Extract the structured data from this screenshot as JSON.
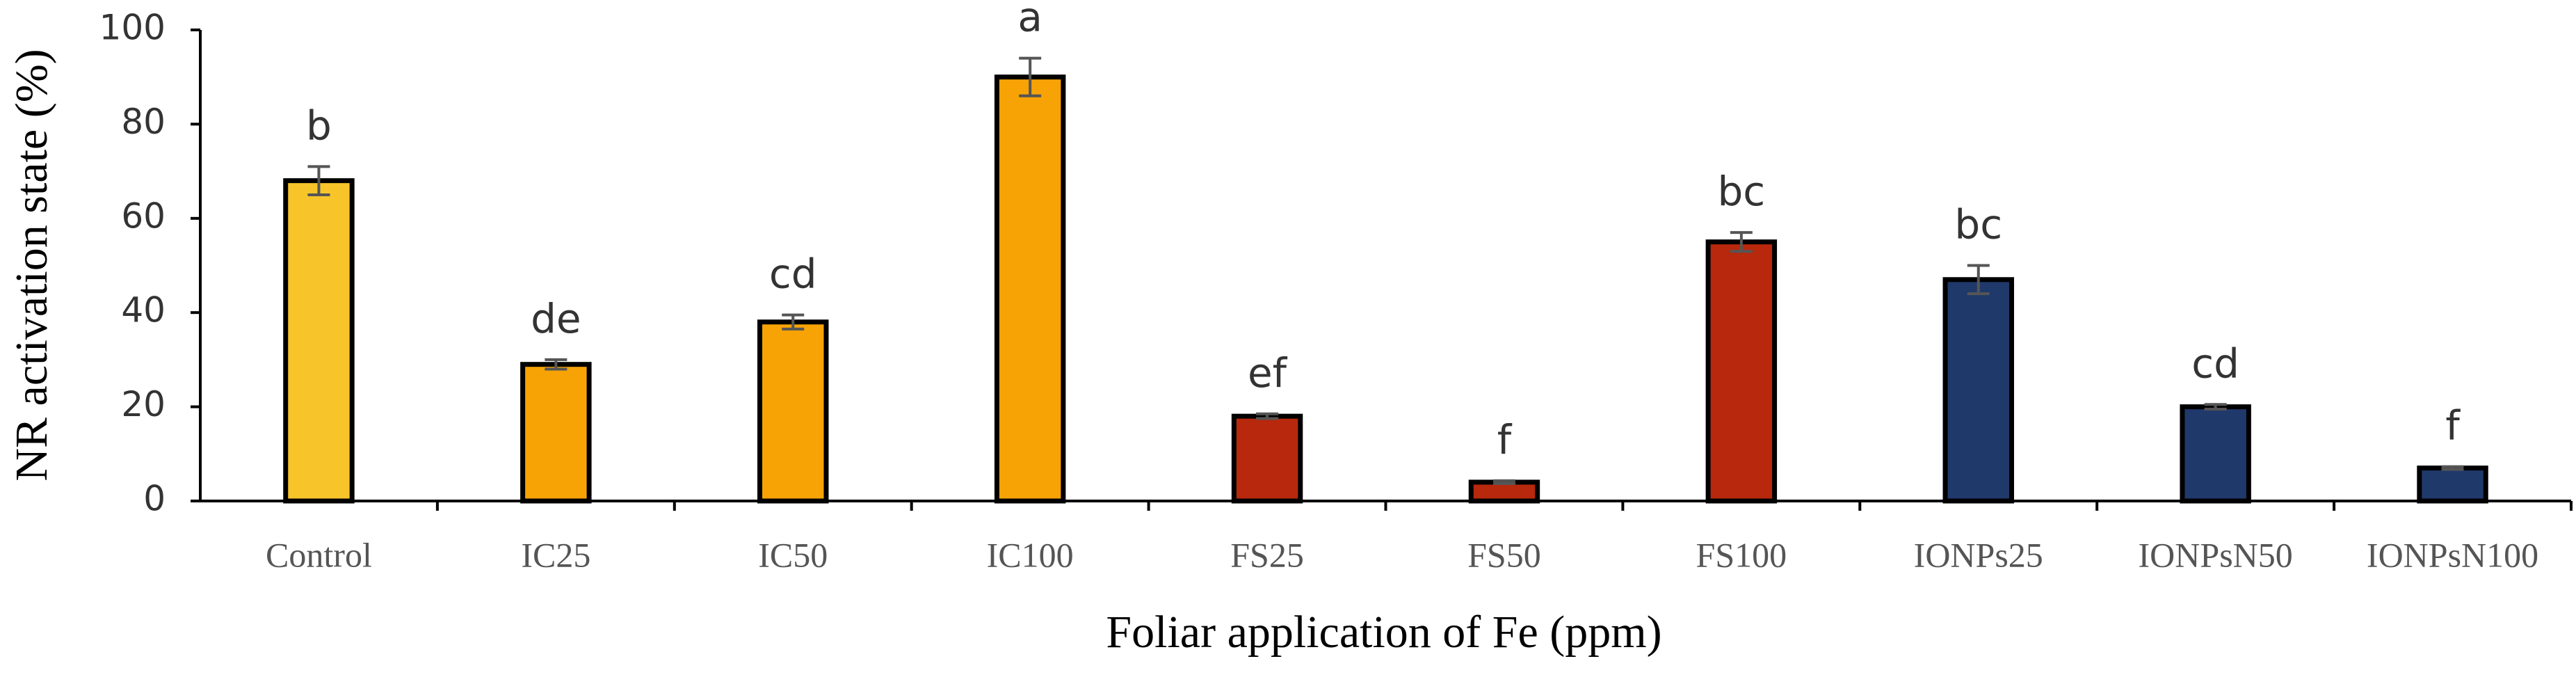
{
  "chart_data": {
    "type": "bar",
    "x_label": "Foliar application of Fe (ppm)",
    "y_label": "NR activation state (%)",
    "categories": [
      "Control",
      "IC25",
      "IC50",
      "IC100",
      "FS25",
      "FS50",
      "FS100",
      "IONPs25",
      "IONPsN50",
      "IONPsN100"
    ],
    "values": [
      68,
      29,
      38,
      90,
      18,
      4,
      55,
      47,
      20,
      7
    ],
    "errors": [
      3,
      1,
      1.5,
      4,
      0.5,
      0.3,
      2,
      3,
      0.5,
      0.3
    ],
    "annotations": [
      "b",
      "de",
      "cd",
      "a",
      "ef",
      "f",
      "bc",
      "bc",
      "cd",
      "f"
    ],
    "colors": [
      "#f7c52a",
      "#f7a306",
      "#f7a306",
      "#f7a306",
      "#b7280c",
      "#b7280c",
      "#b7280c",
      "#20396b",
      "#20396b",
      "#20396b"
    ],
    "ylim": [
      0,
      100
    ],
    "yticks": [
      0,
      20,
      40,
      60,
      80,
      100
    ],
    "grid": false
  }
}
